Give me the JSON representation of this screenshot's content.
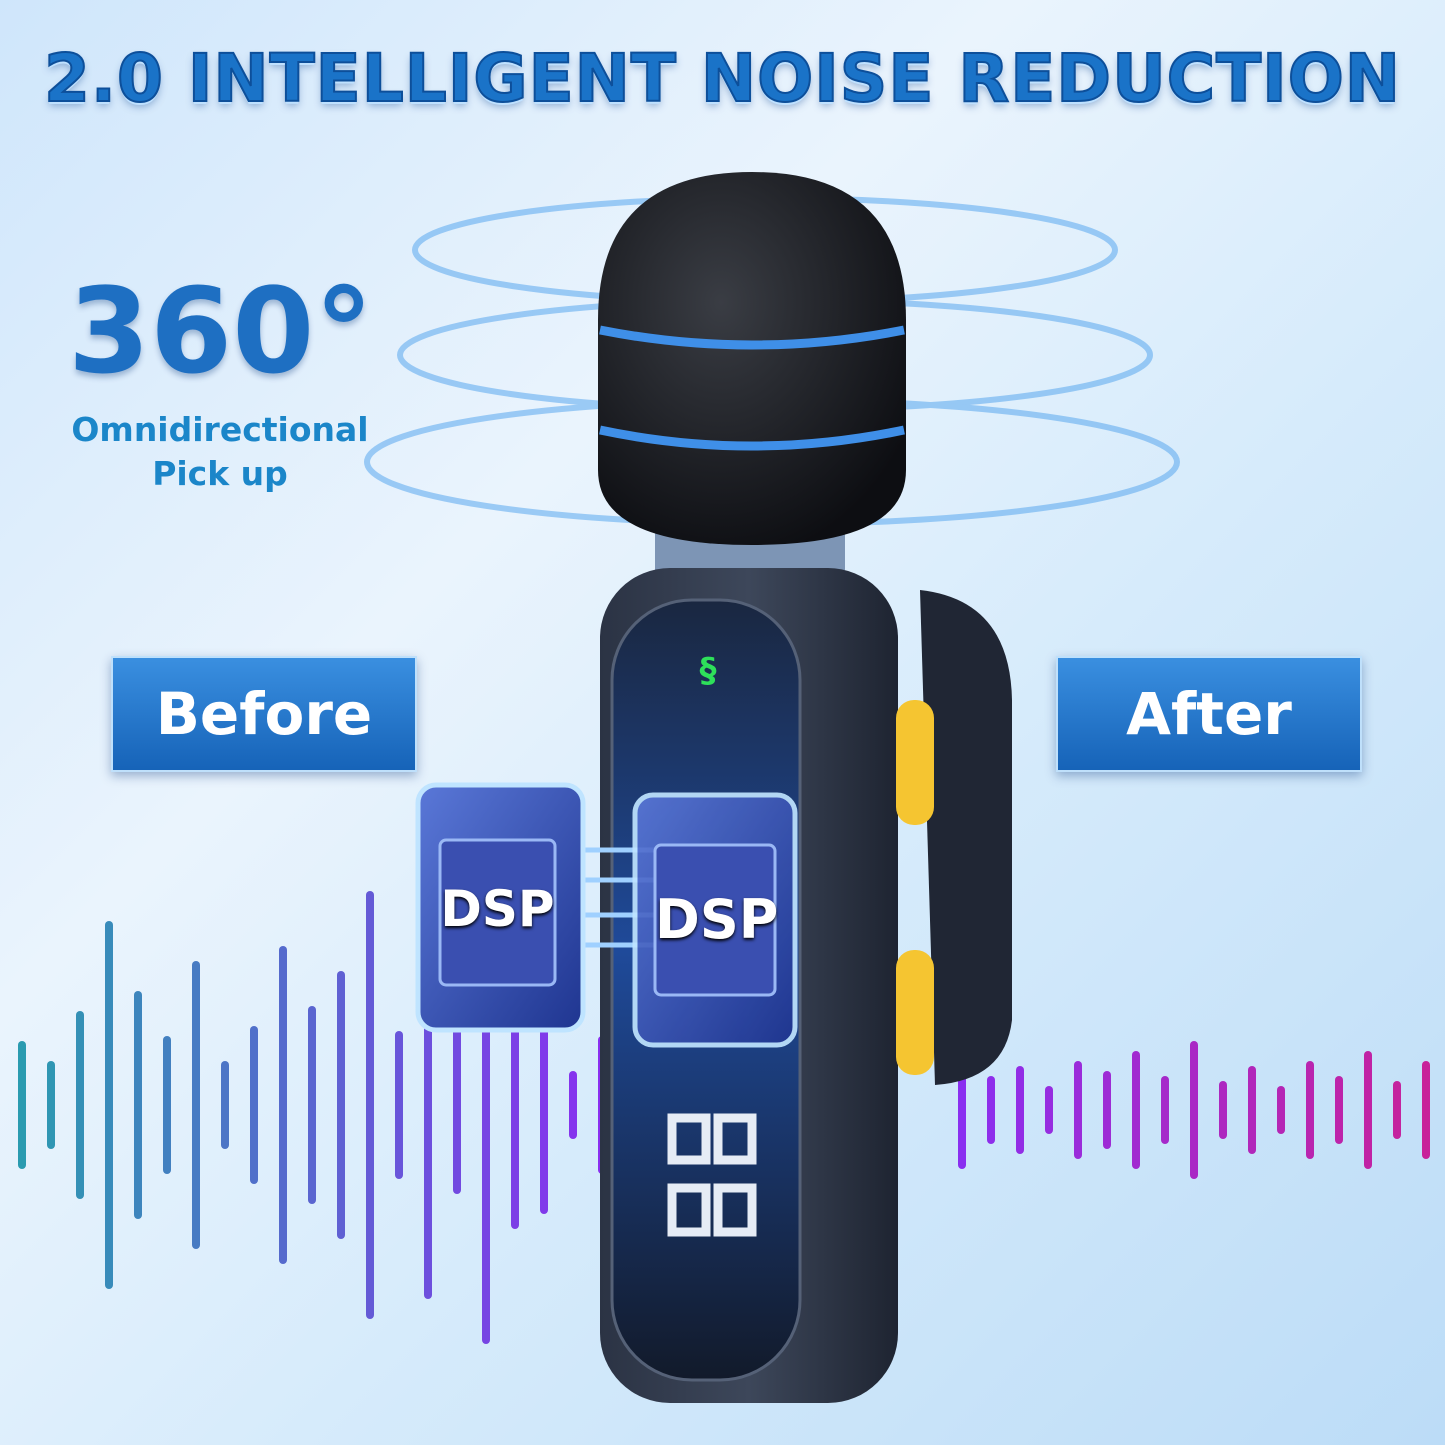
{
  "headline": "2.0 INTELLIGENT NOISE REDUCTION",
  "feature": {
    "angle": "360°",
    "line1": "Omnidirectional",
    "line2": "Pick up"
  },
  "labels": {
    "before": "Before",
    "after": "After"
  },
  "chips": [
    "DSP",
    "DSP"
  ],
  "colors": {
    "accent": "#1a73c8",
    "button": "#f5c531",
    "before_wave": "#2a8fb8",
    "after_wave": "#d0208f",
    "status_led": "#2ee05a"
  },
  "icons": [
    "link-icon",
    "power-icon",
    "mode-icon"
  ]
}
